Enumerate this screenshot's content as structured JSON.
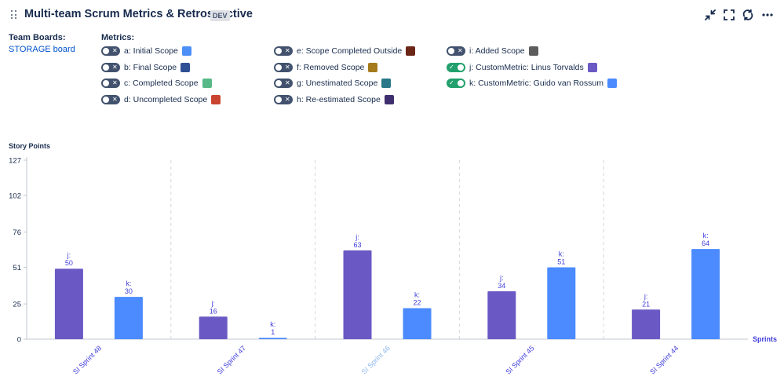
{
  "header": {
    "title": "Multi-team Scrum Metrics & Retrospective",
    "env_badge": "DEV",
    "icons": [
      "drag-handle-icon",
      "collapse-icon",
      "fullscreen-icon",
      "refresh-icon",
      "more-icon"
    ]
  },
  "team_boards": {
    "label": "Team Boards:",
    "board": "STORAGE board"
  },
  "metrics": {
    "label": "Metrics:",
    "items": [
      {
        "label": "a: Initial Scope",
        "enabled": false,
        "color": "#4c8ff7"
      },
      {
        "label": "b: Final Scope",
        "enabled": false,
        "color": "#2d4f94"
      },
      {
        "label": "c: Completed Scope",
        "enabled": false,
        "color": "#57b888"
      },
      {
        "label": "d: Uncompleted Scope",
        "enabled": false,
        "color": "#c9452f"
      },
      {
        "label": "e: Scope Completed Outside",
        "enabled": false,
        "color": "#6b2617"
      },
      {
        "label": "f: Removed Scope",
        "enabled": false,
        "color": "#a47a1c"
      },
      {
        "label": "g: Unestimated Scope",
        "enabled": false,
        "color": "#287889"
      },
      {
        "label": "h: Re-estimated Scope",
        "enabled": false,
        "color": "#3f2f6e"
      },
      {
        "label": "i: Added Scope",
        "enabled": false,
        "color": "#5c5c5c"
      },
      {
        "label": "j: CustomMetric: Linus Torvalds",
        "enabled": true,
        "color": "#6a58c4"
      },
      {
        "label": "k: CustomMetric: Guido van Rossum",
        "enabled": true,
        "color": "#4b8bff"
      }
    ]
  },
  "chart_data": {
    "type": "bar",
    "ylabel": "Story Points",
    "xlabel": "Sprints",
    "ylim": [
      0,
      127
    ],
    "y_ticks": [
      0,
      25,
      51,
      76,
      102,
      127
    ],
    "categories": [
      "SI Sprint 48",
      "SI Sprint 47",
      "SI Sprint 46",
      "SI Sprint 45",
      "SI Sprint 44"
    ],
    "highlighted_category": "SI Sprint 46",
    "series": [
      {
        "name": "j",
        "color": "#6a58c4",
        "values": [
          50,
          16,
          63,
          34,
          21
        ]
      },
      {
        "name": "k",
        "color": "#4b8bff",
        "values": [
          30,
          1,
          22,
          51,
          64
        ]
      }
    ],
    "colors": {
      "axis_text": "#172b4d",
      "category_text": "#3f3cd8",
      "category_highlight": "#8fb8f0",
      "data_label": "#3f3cd8"
    }
  }
}
